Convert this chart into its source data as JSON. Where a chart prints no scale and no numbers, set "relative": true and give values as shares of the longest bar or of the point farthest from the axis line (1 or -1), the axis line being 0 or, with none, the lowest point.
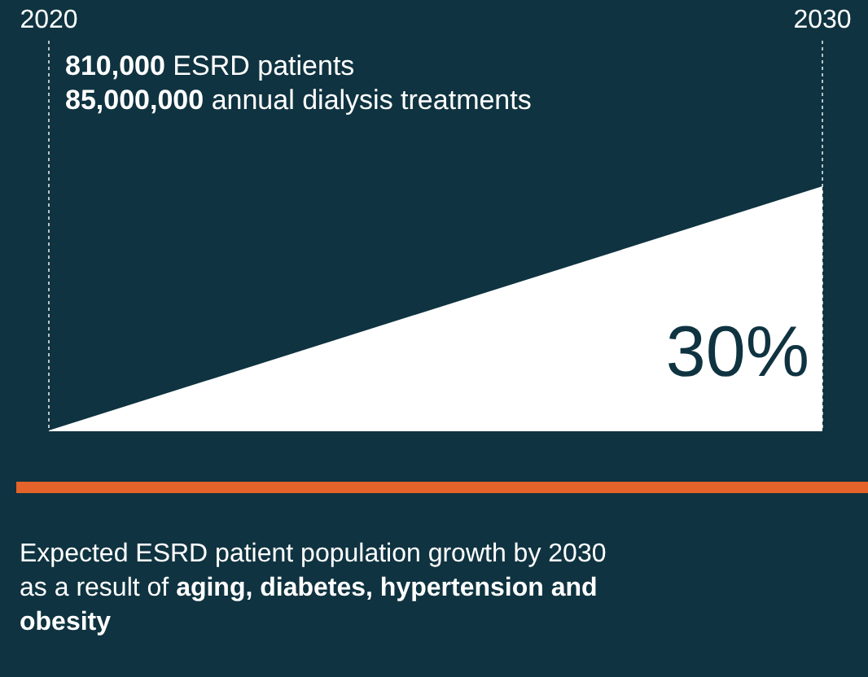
{
  "chart_data": {
    "type": "area",
    "relative": true,
    "x": [
      2020,
      2030
    ],
    "xlim": [
      2020,
      2030
    ],
    "xticks": [
      2020,
      2030
    ],
    "grid": "x",
    "series": [
      {
        "color": "#ffffff",
        "values": [
          0,
          1
        ]
      }
    ],
    "annotations": [
      "810,000 ESRD patients",
      "85,000,000 annual dialysis treatments",
      "30%",
      "Expected ESRD patient population growth by 2030 as a result of",
      "aging, diabetes, hypertension and obesity"
    ]
  }
}
